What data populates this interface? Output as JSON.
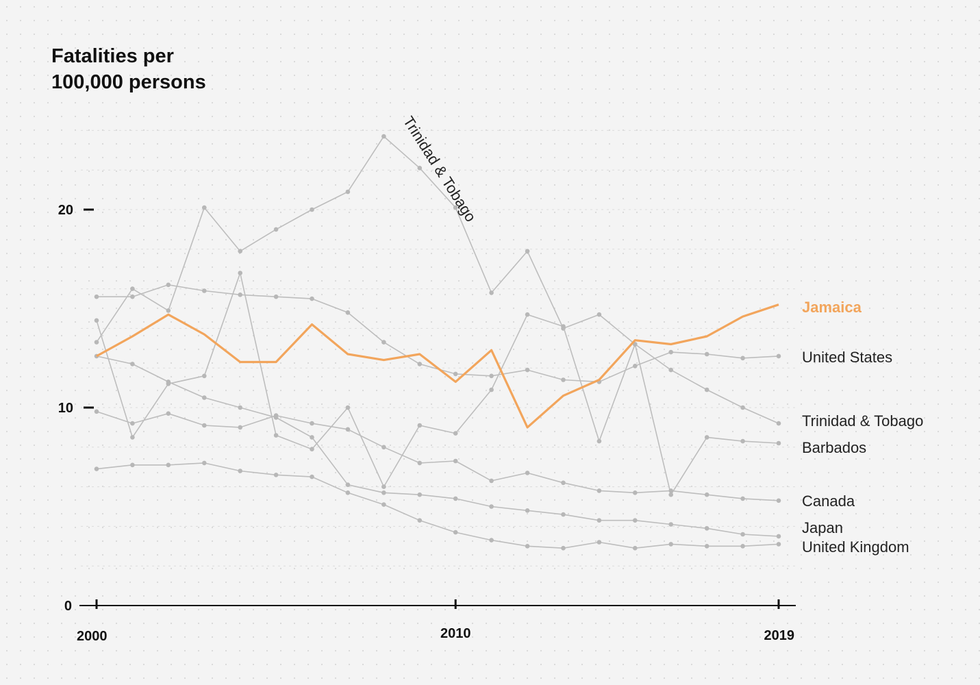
{
  "chart_data": {
    "type": "line",
    "title": "Fatalities per\n100,000 persons",
    "xlabel": "",
    "ylabel": "",
    "x": [
      2000,
      2001,
      2002,
      2003,
      2004,
      2005,
      2006,
      2007,
      2008,
      2009,
      2010,
      2011,
      2012,
      2013,
      2014,
      2015,
      2016,
      2017,
      2018,
      2019
    ],
    "xlim": [
      2000,
      2019
    ],
    "ylim": [
      0,
      25
    ],
    "x_ticks": [
      2000,
      2010,
      2019
    ],
    "y_ticks": [
      0,
      10,
      20
    ],
    "grid": "dotted",
    "highlight_color": "#f2a55c",
    "series_color": "#bdbdbd",
    "series": [
      {
        "name": "Jamaica",
        "highlight": true,
        "values": [
          12.6,
          13.6,
          14.7,
          13.7,
          12.3,
          12.3,
          14.2,
          12.7,
          12.4,
          12.7,
          11.3,
          12.9,
          9.0,
          10.6,
          11.4,
          13.4,
          13.2,
          13.6,
          14.6,
          15.2
        ]
      },
      {
        "name": "United States",
        "values": [
          15.6,
          15.6,
          16.2,
          15.9,
          15.7,
          15.6,
          15.5,
          14.8,
          13.3,
          12.2,
          11.7,
          11.6,
          11.9,
          11.4,
          11.3,
          12.1,
          12.8,
          12.7,
          12.5,
          12.6
        ]
      },
      {
        "name": "Trinidad & Tobago",
        "values": [
          13.3,
          16.0,
          14.9,
          20.1,
          17.9,
          19.0,
          20.0,
          20.9,
          23.7,
          22.1,
          20.1,
          15.8,
          17.9,
          14.0,
          14.7,
          13.2,
          11.9,
          10.9,
          10.0,
          9.2
        ]
      },
      {
        "name": "Barbados",
        "values": [
          14.4,
          8.5,
          11.2,
          11.6,
          16.8,
          8.6,
          7.9,
          10.0,
          6.0,
          9.1,
          8.7,
          10.9,
          14.7,
          14.1,
          8.3,
          13.2,
          5.6,
          8.5,
          8.3,
          8.2
        ]
      },
      {
        "name": "Canada",
        "values": [
          9.8,
          9.2,
          9.7,
          9.1,
          9.0,
          9.6,
          9.2,
          8.9,
          8.0,
          7.2,
          7.3,
          6.3,
          6.7,
          6.2,
          5.8,
          5.7,
          5.8,
          5.6,
          5.4,
          5.3
        ]
      },
      {
        "name": "Japan",
        "values": [
          12.6,
          12.2,
          11.3,
          10.5,
          10.0,
          9.5,
          8.5,
          6.1,
          5.7,
          5.6,
          5.4,
          5.0,
          4.8,
          4.6,
          4.3,
          4.3,
          4.1,
          3.9,
          3.6,
          3.5
        ]
      },
      {
        "name": "United Kingdom",
        "values": [
          6.9,
          7.1,
          7.1,
          7.2,
          6.8,
          6.6,
          6.5,
          5.7,
          5.1,
          4.3,
          3.7,
          3.3,
          3.0,
          2.9,
          3.2,
          2.9,
          3.1,
          3.0,
          3.0,
          3.1
        ]
      }
    ]
  }
}
